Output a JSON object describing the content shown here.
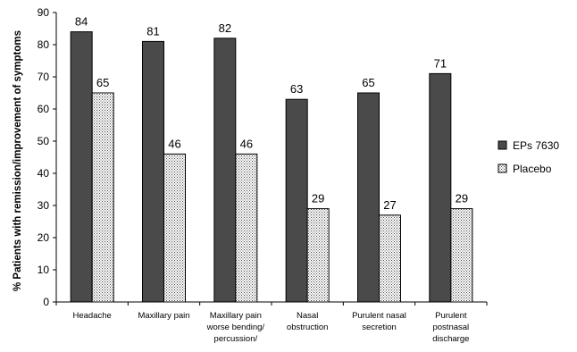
{
  "chart_data": {
    "type": "bar",
    "ylabel": "% Patients with remission/improvement of symptoms",
    "xlabel": "",
    "ylim": [
      0,
      90
    ],
    "yticks": [
      0,
      10,
      20,
      30,
      40,
      50,
      60,
      70,
      80,
      90
    ],
    "categories": [
      [
        "Headache"
      ],
      [
        "Maxillary pain"
      ],
      [
        "Maxillary pain",
        "worse bending/",
        "percussion/"
      ],
      [
        "Nasal",
        "obstruction"
      ],
      [
        "Purulent nasal",
        "secretion"
      ],
      [
        "Purulent",
        "postnasal",
        "discharge"
      ]
    ],
    "series": [
      {
        "name": "EPs 7630",
        "values": [
          84,
          81,
          82,
          63,
          65,
          71
        ],
        "color": "#4a4a4a",
        "pattern": "solid"
      },
      {
        "name": "Placebo",
        "values": [
          65,
          46,
          46,
          29,
          27,
          29
        ],
        "color": "#ffffff",
        "pattern": "dots"
      }
    ],
    "legend_position": "right",
    "grid": false
  }
}
